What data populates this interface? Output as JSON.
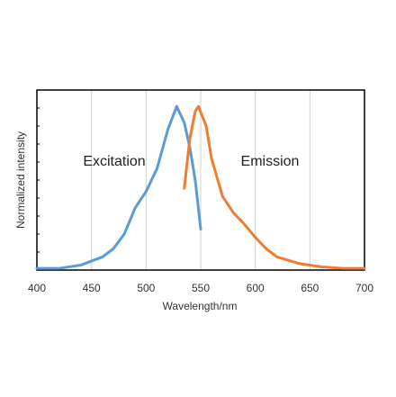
{
  "chart_data": {
    "type": "line",
    "xlabel": "Wavelength/nm",
    "ylabel": "Normalized intensity",
    "annotations": [
      "Excitation",
      "Emission"
    ],
    "xlim": [
      400,
      700
    ],
    "xticks": [
      400,
      450,
      500,
      550,
      600,
      650,
      700
    ],
    "ylim": [
      0,
      1.1
    ],
    "grid": true,
    "series": [
      {
        "name": "Excitation",
        "color": "#5b9bd5",
        "x": [
          400,
          420,
          440,
          460,
          470,
          480,
          490,
          500,
          510,
          520,
          528,
          535,
          540,
          545,
          550
        ],
        "values": [
          0.01,
          0.01,
          0.03,
          0.08,
          0.13,
          0.22,
          0.38,
          0.48,
          0.62,
          0.86,
          1.0,
          0.9,
          0.75,
          0.55,
          0.25
        ]
      },
      {
        "name": "Emission",
        "color": "#ed7d31",
        "x": [
          535,
          540,
          545,
          548,
          555,
          560,
          570,
          580,
          590,
          600,
          610,
          620,
          640,
          660,
          680,
          700
        ],
        "values": [
          0.5,
          0.8,
          0.97,
          1.0,
          0.88,
          0.68,
          0.45,
          0.35,
          0.28,
          0.2,
          0.13,
          0.08,
          0.04,
          0.02,
          0.01,
          0.01
        ]
      }
    ]
  }
}
